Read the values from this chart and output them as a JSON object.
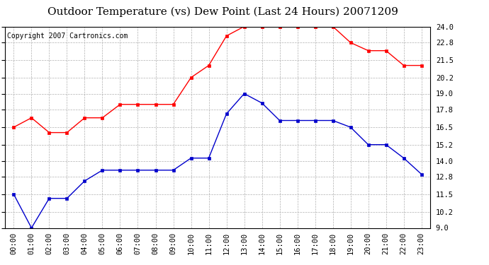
{
  "title": "Outdoor Temperature (vs) Dew Point (Last 24 Hours) 20071209",
  "copyright_text": "Copyright 2007 Cartronics.com",
  "x_labels": [
    "00:00",
    "01:00",
    "02:00",
    "03:00",
    "04:00",
    "05:00",
    "06:00",
    "07:00",
    "08:00",
    "09:00",
    "10:00",
    "11:00",
    "12:00",
    "13:00",
    "14:00",
    "15:00",
    "16:00",
    "17:00",
    "18:00",
    "19:00",
    "20:00",
    "21:00",
    "22:00",
    "23:00"
  ],
  "temp_data": [
    16.5,
    17.2,
    16.1,
    16.1,
    17.2,
    17.2,
    18.2,
    18.2,
    18.2,
    18.2,
    20.2,
    21.1,
    23.3,
    24.0,
    24.0,
    24.0,
    24.0,
    24.0,
    24.0,
    22.8,
    22.2,
    22.2,
    21.1,
    21.1
  ],
  "dew_data": [
    11.5,
    9.0,
    11.2,
    11.2,
    12.5,
    13.3,
    13.3,
    13.3,
    13.3,
    13.3,
    14.2,
    14.2,
    17.5,
    19.0,
    18.3,
    17.0,
    17.0,
    17.0,
    17.0,
    16.5,
    15.2,
    15.2,
    14.2,
    13.0
  ],
  "ylim": [
    9.0,
    24.0
  ],
  "yticks": [
    9.0,
    10.2,
    11.5,
    12.8,
    14.0,
    15.2,
    16.5,
    17.8,
    19.0,
    20.2,
    21.5,
    22.8,
    24.0
  ],
  "temp_color": "#ff0000",
  "dew_color": "#0000cc",
  "bg_color": "#ffffff",
  "grid_color": "#b0b0b0",
  "title_fontsize": 11,
  "copyright_fontsize": 7,
  "tick_fontsize": 7.5
}
